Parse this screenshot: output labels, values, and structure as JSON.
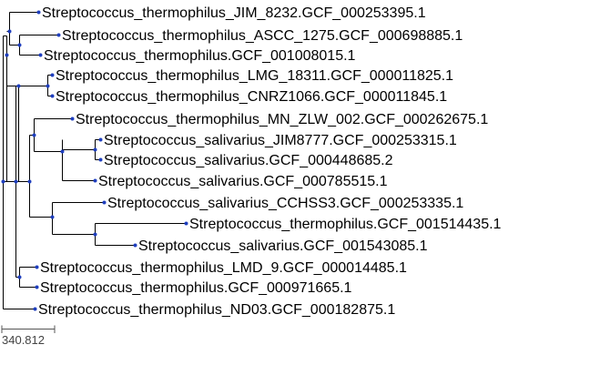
{
  "colors": {
    "node": "#1f3fbf",
    "branch": "#000000",
    "background": "#ffffff"
  },
  "tree": {
    "leaves": [
      "Streptococcus_thermophilus_JIM_8232.GCF_000253395.1",
      "Streptococcus_thermophilus_ASCC_1275.GCF_000698885.1",
      "Streptococcus_thermophilus.GCF_001008015.1",
      "Streptococcus_thermophilus_LMG_18311.GCF_000011825.1",
      "Streptococcus_thermophilus_CNRZ1066.GCF_000011845.1",
      "Streptococcus_thermophilus_MN_ZLW_002.GCF_000262675.1",
      "Streptococcus_salivarius_JIM8777.GCF_000253315.1",
      "Streptococcus_salivarius.GCF_000448685.2",
      "Streptococcus_salivarius.GCF_000785515.1",
      "Streptococcus_salivarius_CCHSS3.GCF_000253335.1",
      "Streptococcus_thermophilus.GCF_001514435.1",
      "Streptococcus_salivarius.GCF_001543085.1",
      "Streptococcus_thermophilus_LMD_9.GCF_000014485.1",
      "Streptococcus_thermophilus.GCF_000971665.1",
      "Streptococcus_thermophilus_ND03.GCF_000182875.1"
    ],
    "scale_label": "340.812"
  }
}
